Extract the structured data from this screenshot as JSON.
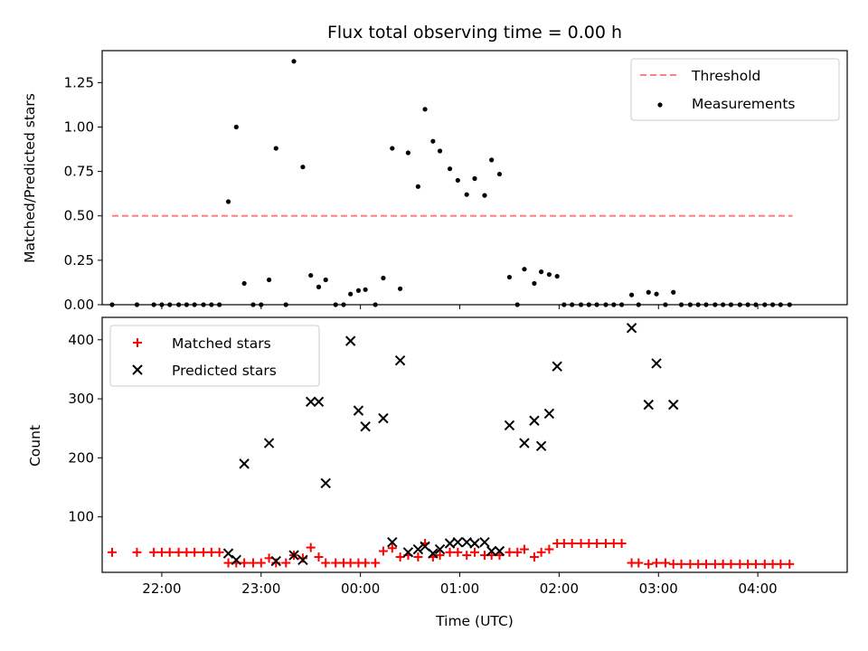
{
  "chart_data": [
    {
      "type": "scatter",
      "title": "Flux total observing time = 0.00 h",
      "xlabel": "",
      "ylabel": "Matched/Predicted stars",
      "xlim": [
        -2.6,
        4.9
      ],
      "ylim": [
        0,
        1.43
      ],
      "yticks": [
        0.0,
        0.25,
        0.5,
        0.75,
        1.0,
        1.25
      ],
      "ytick_labels": [
        "0.00",
        "0.25",
        "0.50",
        "0.75",
        "1.00",
        "1.25"
      ],
      "xticks": [
        -2,
        -1,
        0,
        1,
        2,
        3,
        4
      ],
      "threshold": {
        "name": "Threshold",
        "y": 0.5,
        "x": [
          -2.5,
          4.35
        ],
        "color": "#ff7f7f"
      },
      "series": [
        {
          "name": "Measurements",
          "color": "#000000",
          "points": [
            [
              -2.5,
              0.0
            ],
            [
              -2.25,
              0.0
            ],
            [
              -2.08,
              0.0
            ],
            [
              -2.0,
              0.0
            ],
            [
              -1.92,
              0.0
            ],
            [
              -1.83,
              0.0
            ],
            [
              -1.75,
              0.0
            ],
            [
              -1.67,
              0.0
            ],
            [
              -1.58,
              0.0
            ],
            [
              -1.5,
              0.0
            ],
            [
              -1.42,
              0.0
            ],
            [
              -1.33,
              0.58
            ],
            [
              -1.25,
              1.0
            ],
            [
              -1.17,
              0.12
            ],
            [
              -1.08,
              0.0
            ],
            [
              -1.0,
              0.0
            ],
            [
              -0.92,
              0.14
            ],
            [
              -0.85,
              0.88
            ],
            [
              -0.75,
              0.0
            ],
            [
              -0.67,
              1.37
            ],
            [
              -0.58,
              0.775
            ],
            [
              -0.5,
              0.165
            ],
            [
              -0.42,
              0.1
            ],
            [
              -0.35,
              0.14
            ],
            [
              -0.25,
              0.0
            ],
            [
              -0.17,
              0.0
            ],
            [
              -0.1,
              0.06
            ],
            [
              -0.02,
              0.08
            ],
            [
              0.05,
              0.085
            ],
            [
              0.15,
              0.0
            ],
            [
              0.23,
              0.15
            ],
            [
              0.32,
              0.88
            ],
            [
              0.4,
              0.09
            ],
            [
              0.48,
              0.855
            ],
            [
              0.58,
              0.665
            ],
            [
              0.65,
              1.1
            ],
            [
              0.73,
              0.92
            ],
            [
              0.8,
              0.865
            ],
            [
              0.9,
              0.765
            ],
            [
              0.98,
              0.7
            ],
            [
              1.07,
              0.62
            ],
            [
              1.15,
              0.71
            ],
            [
              1.25,
              0.615
            ],
            [
              1.32,
              0.815
            ],
            [
              1.4,
              0.735
            ],
            [
              1.5,
              0.155
            ],
            [
              1.58,
              0.0
            ],
            [
              1.65,
              0.2
            ],
            [
              1.75,
              0.12
            ],
            [
              1.82,
              0.185
            ],
            [
              1.9,
              0.17
            ],
            [
              1.98,
              0.16
            ],
            [
              2.05,
              0.0
            ],
            [
              2.13,
              0.0
            ],
            [
              2.22,
              0.0
            ],
            [
              2.3,
              0.0
            ],
            [
              2.38,
              0.0
            ],
            [
              2.47,
              0.0
            ],
            [
              2.55,
              0.0
            ],
            [
              2.63,
              0.0
            ],
            [
              2.73,
              0.055
            ],
            [
              2.8,
              0.0
            ],
            [
              2.9,
              0.07
            ],
            [
              2.98,
              0.06
            ],
            [
              3.07,
              0.0
            ],
            [
              3.15,
              0.07
            ],
            [
              3.23,
              0.0
            ],
            [
              3.32,
              0.0
            ],
            [
              3.4,
              0.0
            ],
            [
              3.48,
              0.0
            ],
            [
              3.57,
              0.0
            ],
            [
              3.65,
              0.0
            ],
            [
              3.73,
              0.0
            ],
            [
              3.82,
              0.0
            ],
            [
              3.9,
              0.0
            ],
            [
              3.98,
              0.0
            ],
            [
              4.07,
              0.0
            ],
            [
              4.15,
              0.0
            ],
            [
              4.23,
              0.0
            ],
            [
              4.32,
              0.0
            ]
          ]
        }
      ],
      "legend": {
        "placement": "top-right",
        "entries": [
          "Threshold",
          "Measurements"
        ]
      }
    },
    {
      "type": "scatter",
      "title": "",
      "xlabel": "Time (UTC)",
      "ylabel": "Count",
      "xlim": [
        -2.6,
        4.9
      ],
      "ylim": [
        6,
        438
      ],
      "yticks": [
        100,
        200,
        300,
        400
      ],
      "ytick_labels": [
        "100",
        "200",
        "300",
        "400"
      ],
      "xticks": [
        -2,
        -1,
        0,
        1,
        2,
        3,
        4
      ],
      "xtick_labels": [
        "22:00",
        "23:00",
        "00:00",
        "01:00",
        "02:00",
        "03:00",
        "04:00"
      ],
      "series": [
        {
          "name": "Matched stars",
          "color": "#ff0000",
          "marker": "plus",
          "points": [
            [
              -2.5,
              40
            ],
            [
              -2.25,
              40
            ],
            [
              -2.08,
              40
            ],
            [
              -2.0,
              40
            ],
            [
              -1.92,
              40
            ],
            [
              -1.83,
              40
            ],
            [
              -1.75,
              40
            ],
            [
              -1.67,
              40
            ],
            [
              -1.58,
              40
            ],
            [
              -1.5,
              40
            ],
            [
              -1.42,
              40
            ],
            [
              -1.33,
              22
            ],
            [
              -1.25,
              22
            ],
            [
              -1.17,
              22
            ],
            [
              -1.08,
              22
            ],
            [
              -1.0,
              22
            ],
            [
              -0.92,
              30
            ],
            [
              -0.85,
              22
            ],
            [
              -0.75,
              22
            ],
            [
              -0.67,
              35
            ],
            [
              -0.58,
              30
            ],
            [
              -0.5,
              48
            ],
            [
              -0.42,
              32
            ],
            [
              -0.35,
              22
            ],
            [
              -0.25,
              22
            ],
            [
              -0.17,
              22
            ],
            [
              -0.1,
              22
            ],
            [
              -0.02,
              22
            ],
            [
              0.05,
              22
            ],
            [
              0.15,
              22
            ],
            [
              0.23,
              42
            ],
            [
              0.32,
              47
            ],
            [
              0.4,
              32
            ],
            [
              0.48,
              35
            ],
            [
              0.58,
              32
            ],
            [
              0.65,
              55
            ],
            [
              0.73,
              32
            ],
            [
              0.8,
              35
            ],
            [
              0.9,
              40
            ],
            [
              0.98,
              40
            ],
            [
              1.07,
              35
            ],
            [
              1.15,
              40
            ],
            [
              1.25,
              35
            ],
            [
              1.32,
              35
            ],
            [
              1.4,
              35
            ],
            [
              1.5,
              40
            ],
            [
              1.58,
              40
            ],
            [
              1.65,
              45
            ],
            [
              1.75,
              32
            ],
            [
              1.82,
              40
            ],
            [
              1.9,
              45
            ],
            [
              1.98,
              55
            ],
            [
              2.05,
              55
            ],
            [
              2.13,
              55
            ],
            [
              2.22,
              55
            ],
            [
              2.3,
              55
            ],
            [
              2.38,
              55
            ],
            [
              2.47,
              55
            ],
            [
              2.55,
              55
            ],
            [
              2.63,
              55
            ],
            [
              2.73,
              22
            ],
            [
              2.8,
              22
            ],
            [
              2.9,
              20
            ],
            [
              2.98,
              22
            ],
            [
              3.07,
              22
            ],
            [
              3.15,
              20
            ],
            [
              3.23,
              20
            ],
            [
              3.32,
              20
            ],
            [
              3.4,
              20
            ],
            [
              3.48,
              20
            ],
            [
              3.57,
              20
            ],
            [
              3.65,
              20
            ],
            [
              3.73,
              20
            ],
            [
              3.82,
              20
            ],
            [
              3.9,
              20
            ],
            [
              3.98,
              20
            ],
            [
              4.07,
              20
            ],
            [
              4.15,
              20
            ],
            [
              4.23,
              20
            ],
            [
              4.32,
              20
            ]
          ]
        },
        {
          "name": "Predicted stars",
          "color": "#000000",
          "marker": "x",
          "points": [
            [
              -1.33,
              38
            ],
            [
              -1.25,
              27
            ],
            [
              -1.17,
              190
            ],
            [
              -0.92,
              225
            ],
            [
              -0.85,
              25
            ],
            [
              -0.67,
              35
            ],
            [
              -0.58,
              27
            ],
            [
              -0.5,
              295
            ],
            [
              -0.42,
              295
            ],
            [
              -0.35,
              157
            ],
            [
              -0.1,
              398
            ],
            [
              -0.02,
              280
            ],
            [
              0.05,
              253
            ],
            [
              0.23,
              267
            ],
            [
              0.32,
              57
            ],
            [
              0.4,
              365
            ],
            [
              0.48,
              40
            ],
            [
              0.58,
              45
            ],
            [
              0.65,
              50
            ],
            [
              0.73,
              38
            ],
            [
              0.8,
              45
            ],
            [
              0.9,
              55
            ],
            [
              0.98,
              57
            ],
            [
              1.07,
              57
            ],
            [
              1.15,
              55
            ],
            [
              1.25,
              57
            ],
            [
              1.32,
              42
            ],
            [
              1.4,
              42
            ],
            [
              1.5,
              255
            ],
            [
              1.65,
              225
            ],
            [
              1.75,
              263
            ],
            [
              1.82,
              220
            ],
            [
              1.9,
              275
            ],
            [
              1.98,
              355
            ],
            [
              2.73,
              420
            ],
            [
              2.9,
              290
            ],
            [
              2.98,
              360
            ],
            [
              3.15,
              290
            ]
          ]
        }
      ],
      "legend": {
        "placement": "top-left",
        "entries": [
          "Matched stars",
          "Predicted stars"
        ]
      }
    }
  ]
}
